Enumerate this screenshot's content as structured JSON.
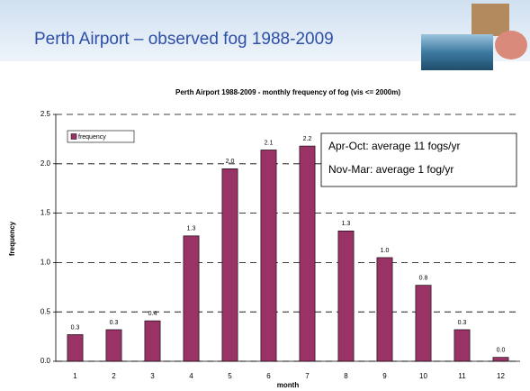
{
  "slide_title": "Perth Airport – observed fog 1988-2009",
  "chart_data": {
    "type": "bar",
    "title": "Perth Airport 1988-2009 - monthly frequency of fog (vis <= 2000m)",
    "x_label": "month",
    "y_label": "frequency",
    "categories": [
      1,
      2,
      3,
      4,
      5,
      6,
      7,
      8,
      9,
      10,
      11,
      12
    ],
    "series": [
      {
        "name": "frequency",
        "color": "#993366",
        "values": [
          0.27,
          0.32,
          0.41,
          1.27,
          1.95,
          2.14,
          2.18,
          1.32,
          1.05,
          0.77,
          0.32,
          0.04
        ],
        "value_labels": [
          "0.3",
          "0.3",
          "0.4",
          "1.3",
          "2.0",
          "2.1",
          "2.2",
          "1.3",
          "1.0",
          "0.8",
          "0.3",
          "0.0"
        ]
      }
    ],
    "ylim": [
      0,
      2.5
    ],
    "yticks": [
      {
        "value": 0,
        "label": "0.0"
      },
      0.5,
      {
        "value": 1,
        "label": "1.0"
      },
      1.5,
      {
        "value": 2,
        "label": "2.0"
      },
      2.5
    ],
    "grid": true,
    "legend": "upper left",
    "annotations": [
      "Apr-Oct: average 11 fogs/yr",
      "Nov-Mar: average 1 fog/yr"
    ]
  }
}
